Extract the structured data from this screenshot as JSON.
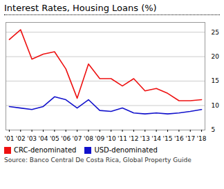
{
  "chart_data": {
    "type": "line",
    "title": "Interest Rates, Housing Loans (%)",
    "x": [
      2001,
      2002,
      2003,
      2004,
      2005,
      2006,
      2007,
      2008,
      2009,
      2010,
      2011,
      2012,
      2013,
      2014,
      2015,
      2016,
      2017,
      2018
    ],
    "series": [
      {
        "name": "CRC-denominated",
        "color": "#ee1111",
        "values": [
          23.5,
          25.5,
          19.5,
          20.5,
          21.0,
          17.5,
          11.5,
          18.5,
          15.5,
          15.5,
          14.0,
          15.5,
          13.0,
          13.5,
          12.5,
          11.0,
          11.0,
          11.2
        ]
      },
      {
        "name": "USD-denominated",
        "color": "#1111cc",
        "values": [
          9.8,
          9.5,
          9.2,
          9.8,
          11.8,
          11.2,
          9.5,
          11.2,
          9.0,
          8.8,
          9.5,
          8.5,
          8.3,
          8.5,
          8.3,
          8.5,
          8.8,
          9.2
        ]
      }
    ],
    "xlim": [
      2000.7,
      2018.3
    ],
    "xticks": [
      {
        "value": 2001,
        "label": "'01"
      },
      {
        "value": 2002,
        "label": "'02"
      },
      {
        "value": 2003,
        "label": "'03"
      },
      {
        "value": 2004,
        "label": "'04"
      },
      {
        "value": 2005,
        "label": "'05"
      },
      {
        "value": 2006,
        "label": "'06"
      },
      {
        "value": 2007,
        "label": "'07"
      },
      {
        "value": 2008,
        "label": "'08"
      },
      {
        "value": 2009,
        "label": "'09"
      },
      {
        "value": 2010,
        "label": "'10"
      },
      {
        "value": 2011,
        "label": "'11"
      },
      {
        "value": 2012,
        "label": "'12"
      },
      {
        "value": 2013,
        "label": "'13"
      },
      {
        "value": 2014,
        "label": "'14"
      },
      {
        "value": 2015,
        "label": "'15"
      },
      {
        "value": 2016,
        "label": "'16"
      },
      {
        "value": 2017,
        "label": "'17"
      },
      {
        "value": 2018,
        "label": "'18"
      }
    ],
    "ylim": [
      5,
      27
    ],
    "yticks": [
      5,
      10,
      15,
      20,
      25
    ],
    "grid": true,
    "legend": "bottom",
    "source": "Source: Banco Central De Costa Rica, Global Property Guide"
  }
}
